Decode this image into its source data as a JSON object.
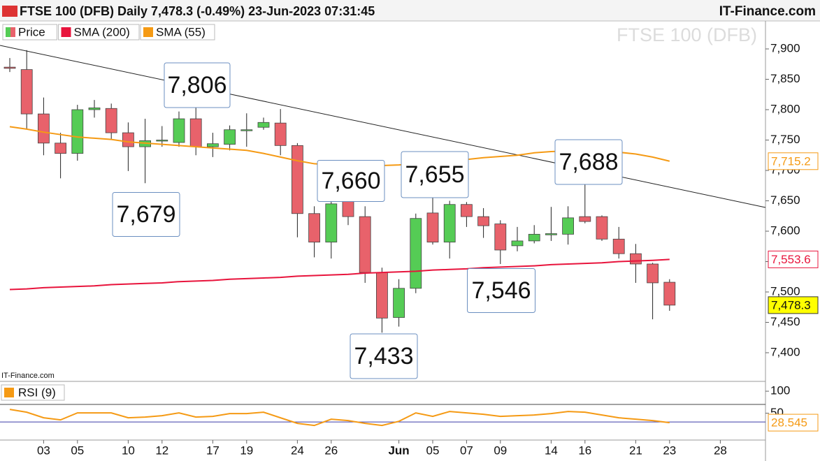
{
  "chart_data": [
    {
      "type": "candlestick",
      "title": "FTSE 100 (DFB) Daily 7,478.3 (-0.49%) 23-Jun-2023 07:31:45",
      "source": "IT-Finance.com",
      "watermark": "FTSE 100 (DFB)",
      "credit": "IT-Finance.com",
      "categories": [
        null,
        null,
        "03",
        null,
        "05",
        null,
        null,
        "10",
        null,
        "12",
        null,
        null,
        "17",
        null,
        "19",
        null,
        null,
        "24",
        null,
        "26",
        null,
        null,
        null,
        "Jun",
        null,
        "05",
        null,
        "07",
        null,
        "09",
        null,
        null,
        "14",
        null,
        "16",
        null,
        null,
        "21",
        null,
        "23",
        null,
        null,
        "28",
        null,
        null
      ],
      "ylim": [
        7354,
        7946
      ],
      "yticks": [
        {
          "value": 7400,
          "label": "7,400"
        },
        {
          "value": 7450,
          "label": "7,450"
        },
        {
          "value": 7500,
          "label": "7,500"
        },
        {
          "value": 7550,
          "label": "7,550"
        },
        {
          "value": 7600,
          "label": "7,600"
        },
        {
          "value": 7650,
          "label": "7,650"
        },
        {
          "value": 7700,
          "label": "7,700"
        },
        {
          "value": 7750,
          "label": "7,750"
        },
        {
          "value": 7800,
          "label": "7,800"
        },
        {
          "value": 7850,
          "label": "7,850"
        },
        {
          "value": 7900,
          "label": "7,900"
        }
      ],
      "series": [
        {
          "name": "Price",
          "type": "candlestick",
          "up_color": "#55cc55",
          "down_color": "#e8626b",
          "last_value_label": "7,478.3",
          "open": [
            7870,
            7866,
            7793,
            7745,
            7728,
            7800,
            7802,
            7762,
            7739,
            7749,
            7746,
            7785,
            7739,
            7743,
            7766,
            7771,
            7778,
            7741,
            7629,
            7582,
            7649,
            7624,
            7532,
            7458,
            7506,
            7630,
            7582,
            7644,
            7624,
            7612,
            7576,
            7584,
            7594,
            7595,
            7624,
            7624,
            7587,
            7563,
            7546,
            7516,
            null,
            null,
            null,
            null,
            null
          ],
          "high": [
            7885,
            7898,
            7820,
            7762,
            7808,
            7816,
            7810,
            7779,
            7785,
            7773,
            7797,
            7806,
            7762,
            7774,
            7794,
            7787,
            7801,
            7745,
            7641,
            7653,
            7660,
            7641,
            7540,
            7521,
            7629,
            7655,
            7650,
            7648,
            7638,
            7618,
            7607,
            7610,
            7640,
            7641,
            7688,
            7626,
            7607,
            7579,
            7548,
            7521,
            null,
            null,
            null,
            null,
            null
          ],
          "low": [
            7862,
            7768,
            7725,
            7687,
            7716,
            7787,
            7751,
            7699,
            7679,
            7739,
            7739,
            7725,
            7722,
            7733,
            7739,
            7767,
            7725,
            7590,
            7557,
            7555,
            7610,
            7515,
            7433,
            7443,
            7498,
            7578,
            7555,
            7607,
            7589,
            7546,
            7567,
            7580,
            7584,
            7578,
            7613,
            7584,
            7555,
            7515,
            7455,
            7469,
            null,
            null,
            null,
            null,
            null
          ],
          "close": [
            7868,
            7793,
            7745,
            7728,
            7800,
            7803,
            7762,
            7739,
            7749,
            7750,
            7785,
            7739,
            7744,
            7767,
            7767,
            7779,
            7741,
            7629,
            7582,
            7645,
            7624,
            7532,
            7457,
            7506,
            7621,
            7582,
            7644,
            7624,
            7609,
            7569,
            7584,
            7595,
            7596,
            7622,
            7616,
            7587,
            7563,
            7546,
            7515,
            7478.3,
            null,
            null,
            null,
            null,
            null
          ]
        },
        {
          "name": "SMA (200)",
          "type": "line",
          "color": "#e8143c",
          "last_value_label": "7,553.6",
          "values": [
            7504,
            7505,
            7507,
            7508,
            7509,
            7510,
            7512,
            7513,
            7514,
            7515,
            7517,
            7518,
            7519,
            7521,
            7522,
            7523,
            7524,
            7526,
            7527,
            7528,
            7529,
            7531,
            7532,
            7533,
            7534,
            7536,
            7537,
            7538,
            7540,
            7541,
            7542,
            7543,
            7545,
            7546,
            7547,
            7548,
            7550,
            7551,
            7552,
            7553.6,
            null,
            null,
            null,
            null,
            null
          ]
        },
        {
          "name": "SMA (55)",
          "type": "line",
          "color": "#f59a14",
          "last_value_label": "7,715.2",
          "values": [
            7772,
            7768,
            7763,
            7759,
            7755,
            7753,
            7751,
            7747,
            7745,
            7743,
            7741,
            7739,
            7737,
            7735,
            7733,
            7728,
            7722,
            7716,
            7711,
            7709,
            7708,
            7708,
            7708,
            7709,
            7711,
            7714,
            7716,
            7718,
            7721,
            7723,
            7725,
            7729,
            7731,
            7732,
            7732,
            7731,
            7730,
            7727,
            7722,
            7715.2,
            null,
            null,
            null,
            null,
            null
          ]
        }
      ],
      "annotations": [
        "7,806",
        "7,679",
        "7,660",
        "7,655",
        "7,546",
        "7,433",
        "7,688"
      ]
    },
    {
      "type": "line",
      "ylim": [
        -11,
        116
      ],
      "yticks": [
        50,
        100
      ],
      "reference_lines": [
        {
          "value": 70,
          "color": "#444444"
        },
        {
          "value": 30,
          "color": "#3a3aa8"
        }
      ],
      "series": [
        {
          "name": "RSI (9)",
          "color": "#f59a14",
          "last_value_label": "28.545",
          "values": [
            58.7,
            52.3,
            39.6,
            34.8,
            50.7,
            50.7,
            50.7,
            39.6,
            41.2,
            44.4,
            50.7,
            41.2,
            42.8,
            49.1,
            49.1,
            52.3,
            39.6,
            26.9,
            22.1,
            36.4,
            33.2,
            26.9,
            22.1,
            31.6,
            50.7,
            42.8,
            53.9,
            50.7,
            47.5,
            42.8,
            44.4,
            45.9,
            49.1,
            53.9,
            52.3,
            45.9,
            39.6,
            36.4,
            33.2,
            28.545,
            null,
            null,
            null,
            null,
            null
          ]
        }
      ]
    }
  ]
}
